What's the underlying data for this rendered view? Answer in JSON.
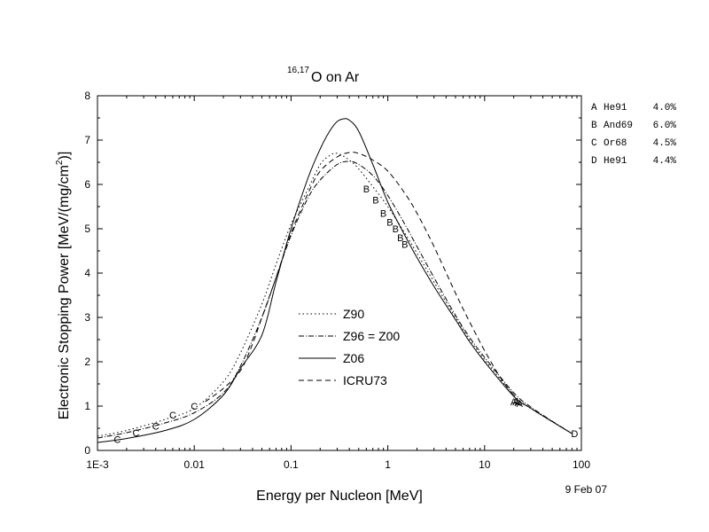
{
  "chart_data": {
    "type": "line",
    "title_sup": "16,17",
    "title_main": "O on Ar",
    "xlabel": "Energy per Nucleon [MeV]",
    "ylabel_main": "Electronic Stopping Power [MeV/(mg/cm",
    "ylabel_sup": "2",
    "ylabel_end": ")]",
    "x_scale": "log",
    "xlim": [
      0.001,
      100
    ],
    "ylim": [
      0,
      8
    ],
    "x_ticks": [
      {
        "value": 0.001,
        "label": "1E-3"
      },
      {
        "value": 0.01,
        "label": "0.01"
      },
      {
        "value": 0.1,
        "label": "0.1"
      },
      {
        "value": 1,
        "label": "1"
      },
      {
        "value": 10,
        "label": "10"
      },
      {
        "value": 100,
        "label": "100"
      }
    ],
    "y_ticks": [
      {
        "value": 0,
        "label": "0"
      },
      {
        "value": 1,
        "label": "1"
      },
      {
        "value": 2,
        "label": "2"
      },
      {
        "value": 3,
        "label": "3"
      },
      {
        "value": 4,
        "label": "4"
      },
      {
        "value": 5,
        "label": "5"
      },
      {
        "value": 6,
        "label": "6"
      },
      {
        "value": 7,
        "label": "7"
      },
      {
        "value": 8,
        "label": "8"
      }
    ],
    "date": "9 Feb 07",
    "grid": false,
    "legend_position": "center",
    "series": [
      {
        "name": "Z90",
        "style": "dotted",
        "points": [
          [
            0.001,
            0.32
          ],
          [
            0.002,
            0.45
          ],
          [
            0.005,
            0.7
          ],
          [
            0.01,
            0.95
          ],
          [
            0.02,
            1.55
          ],
          [
            0.03,
            2.2
          ],
          [
            0.05,
            3.3
          ],
          [
            0.07,
            4.2
          ],
          [
            0.1,
            5.1
          ],
          [
            0.15,
            5.9
          ],
          [
            0.2,
            6.45
          ],
          [
            0.25,
            6.65
          ],
          [
            0.3,
            6.7
          ],
          [
            0.4,
            6.55
          ],
          [
            0.5,
            6.35
          ],
          [
            0.7,
            5.95
          ],
          [
            1,
            5.5
          ],
          [
            1.5,
            4.9
          ],
          [
            2,
            4.45
          ],
          [
            3,
            3.8
          ],
          [
            5,
            3.0
          ],
          [
            7,
            2.5
          ],
          [
            10,
            2.05
          ],
          [
            20,
            1.25
          ],
          [
            30,
            0.95
          ],
          [
            50,
            0.65
          ],
          [
            80,
            0.38
          ]
        ]
      },
      {
        "name": "Z96 = Z00",
        "style": "dash-dot",
        "points": [
          [
            0.001,
            0.28
          ],
          [
            0.002,
            0.4
          ],
          [
            0.005,
            0.62
          ],
          [
            0.01,
            0.85
          ],
          [
            0.02,
            1.3
          ],
          [
            0.03,
            1.9
          ],
          [
            0.05,
            3.0
          ],
          [
            0.07,
            3.9
          ],
          [
            0.1,
            4.85
          ],
          [
            0.15,
            5.7
          ],
          [
            0.2,
            6.1
          ],
          [
            0.3,
            6.45
          ],
          [
            0.4,
            6.52
          ],
          [
            0.5,
            6.45
          ],
          [
            0.7,
            6.2
          ],
          [
            1,
            5.75
          ],
          [
            1.5,
            5.1
          ],
          [
            2,
            4.6
          ],
          [
            3,
            3.9
          ],
          [
            5,
            3.05
          ],
          [
            7,
            2.55
          ],
          [
            10,
            2.1
          ],
          [
            20,
            1.3
          ],
          [
            30,
            0.98
          ],
          [
            50,
            0.66
          ],
          [
            80,
            0.38
          ]
        ]
      },
      {
        "name": "Z06",
        "style": "solid",
        "points": [
          [
            0.001,
            0.18
          ],
          [
            0.002,
            0.27
          ],
          [
            0.005,
            0.45
          ],
          [
            0.01,
            0.7
          ],
          [
            0.02,
            1.25
          ],
          [
            0.03,
            1.85
          ],
          [
            0.05,
            2.6
          ],
          [
            0.07,
            3.8
          ],
          [
            0.1,
            5.0
          ],
          [
            0.15,
            6.15
          ],
          [
            0.2,
            6.8
          ],
          [
            0.25,
            7.2
          ],
          [
            0.3,
            7.42
          ],
          [
            0.35,
            7.48
          ],
          [
            0.4,
            7.45
          ],
          [
            0.5,
            7.2
          ],
          [
            0.7,
            6.45
          ],
          [
            1,
            5.6
          ],
          [
            1.5,
            4.85
          ],
          [
            2,
            4.35
          ],
          [
            3,
            3.7
          ],
          [
            5,
            2.95
          ],
          [
            7,
            2.45
          ],
          [
            10,
            2.0
          ],
          [
            20,
            1.22
          ],
          [
            30,
            0.95
          ],
          [
            50,
            0.65
          ],
          [
            80,
            0.38
          ]
        ]
      },
      {
        "name": "ICRU73",
        "style": "dashed",
        "points": [
          [
            0.013,
            1.1
          ],
          [
            0.02,
            1.4
          ],
          [
            0.03,
            1.8
          ],
          [
            0.04,
            2.4
          ],
          [
            0.05,
            3.0
          ],
          [
            0.07,
            3.9
          ],
          [
            0.1,
            4.9
          ],
          [
            0.15,
            5.8
          ],
          [
            0.2,
            6.3
          ],
          [
            0.3,
            6.62
          ],
          [
            0.4,
            6.72
          ],
          [
            0.5,
            6.7
          ],
          [
            0.7,
            6.55
          ],
          [
            1,
            6.3
          ],
          [
            1.5,
            5.8
          ],
          [
            2,
            5.35
          ],
          [
            3,
            4.6
          ],
          [
            5,
            3.55
          ],
          [
            7,
            2.9
          ],
          [
            10,
            2.25
          ],
          [
            15,
            1.6
          ],
          [
            20,
            1.25
          ]
        ]
      }
    ],
    "data_markers": [
      {
        "letter": "C",
        "points": [
          [
            0.0016,
            0.25
          ],
          [
            0.0025,
            0.4
          ],
          [
            0.004,
            0.55
          ],
          [
            0.006,
            0.8
          ],
          [
            0.01,
            1.0
          ]
        ]
      },
      {
        "letter": "B",
        "points": [
          [
            0.6,
            5.9
          ],
          [
            0.75,
            5.65
          ],
          [
            0.9,
            5.35
          ],
          [
            1.05,
            5.15
          ],
          [
            1.2,
            5.0
          ],
          [
            1.35,
            4.8
          ],
          [
            1.5,
            4.65
          ]
        ]
      },
      {
        "letter": "A",
        "points": [
          [
            20,
            1.1
          ],
          [
            21,
            1.1
          ],
          [
            22,
            1.08
          ],
          [
            23,
            1.06
          ]
        ]
      },
      {
        "letter": "D",
        "points": [
          [
            85,
            0.38
          ]
        ]
      }
    ],
    "references": [
      {
        "letter": "A",
        "ref": "He91",
        "error": "4.0%"
      },
      {
        "letter": "B",
        "ref": "And69",
        "error": "6.0%"
      },
      {
        "letter": "C",
        "ref": "Or68",
        "error": "4.5%"
      },
      {
        "letter": "D",
        "ref": "He91",
        "error": "4.4%"
      }
    ]
  }
}
